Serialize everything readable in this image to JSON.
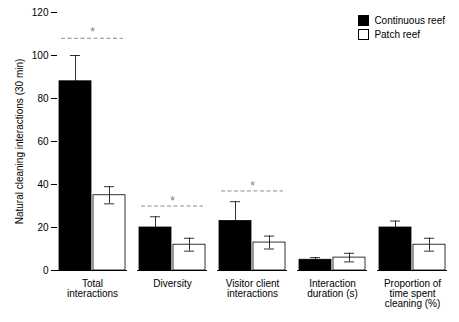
{
  "chart_data": {
    "type": "bar",
    "categories": [
      "Total\ninteractions",
      "Diversity",
      "Visitor client\ninteractions",
      "Interaction\nduration (s)",
      "Proportion of\ntime spent\ncleaning (%)"
    ],
    "ylabel": "Natural cleaning interactions (30 min)",
    "ylim": [
      0,
      120
    ],
    "yticks": [
      0,
      20,
      40,
      60,
      80,
      100,
      120
    ],
    "grid": false,
    "legend": "upper right",
    "series": [
      {
        "name": "Continuous reef",
        "color": "#000000",
        "values": [
          88,
          20,
          23,
          5,
          20
        ],
        "errors": [
          12,
          5,
          9,
          1,
          3
        ]
      },
      {
        "name": "Patch reef",
        "color": "#ffffff",
        "values": [
          35,
          12,
          13,
          6,
          12
        ],
        "errors": [
          4,
          3,
          3,
          2,
          3
        ]
      }
    ],
    "annotations": [
      {
        "text": "*",
        "category": "Total\ninteractions",
        "y": 112,
        "line_y": 108
      },
      {
        "text": "*",
        "category": "Diversity",
        "y": 33,
        "line_y": 30
      },
      {
        "text": "*",
        "category": "Visitor client\ninteractions",
        "y": 40,
        "line_y": 37
      }
    ]
  }
}
